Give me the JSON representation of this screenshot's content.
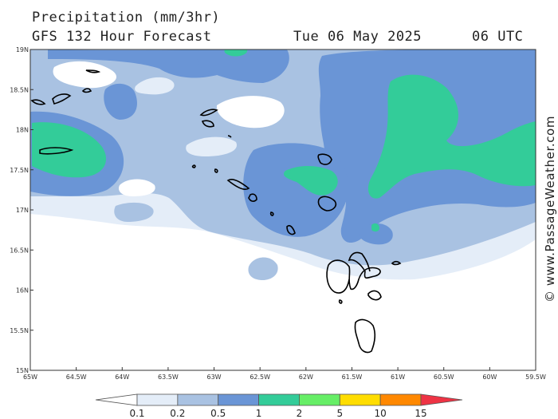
{
  "header": {
    "line1": "Precipitation (mm/3hr)",
    "line2": "GFS 132 Hour Forecast",
    "date": "Tue 06 May 2025",
    "time": "06 UTC"
  },
  "watermark": "© www.PassageWeather.com",
  "axes": {
    "lat_labels": [
      "19N",
      "18.5N",
      "18N",
      "17.5N",
      "17N",
      "16.5N",
      "16N",
      "15.5N",
      "15N"
    ],
    "lon_labels": [
      "65W",
      "64.5W",
      "64W",
      "63.5W",
      "63W",
      "62.5W",
      "62W",
      "61.5W",
      "61W",
      "60.5W",
      "60W",
      "59.5W"
    ],
    "lat_range": [
      15,
      19
    ],
    "lon_range": [
      -65,
      -59.5
    ]
  },
  "colorbar": {
    "labels": [
      "0.1",
      "0.2",
      "0.5",
      "1",
      "2",
      "5",
      "10",
      "15"
    ],
    "colors": [
      "#ffffff",
      "#e4edf8",
      "#a9c2e2",
      "#6a95d6",
      "#33cc99",
      "#66ee66",
      "#ffdd00",
      "#ff8800",
      "#ee3344"
    ]
  },
  "palette": {
    "p01": "#e4edf8",
    "p02": "#a9c2e2",
    "p05": "#6a95d6",
    "p1": "#33cc99",
    "land": "#000000",
    "frame": "#333333"
  }
}
